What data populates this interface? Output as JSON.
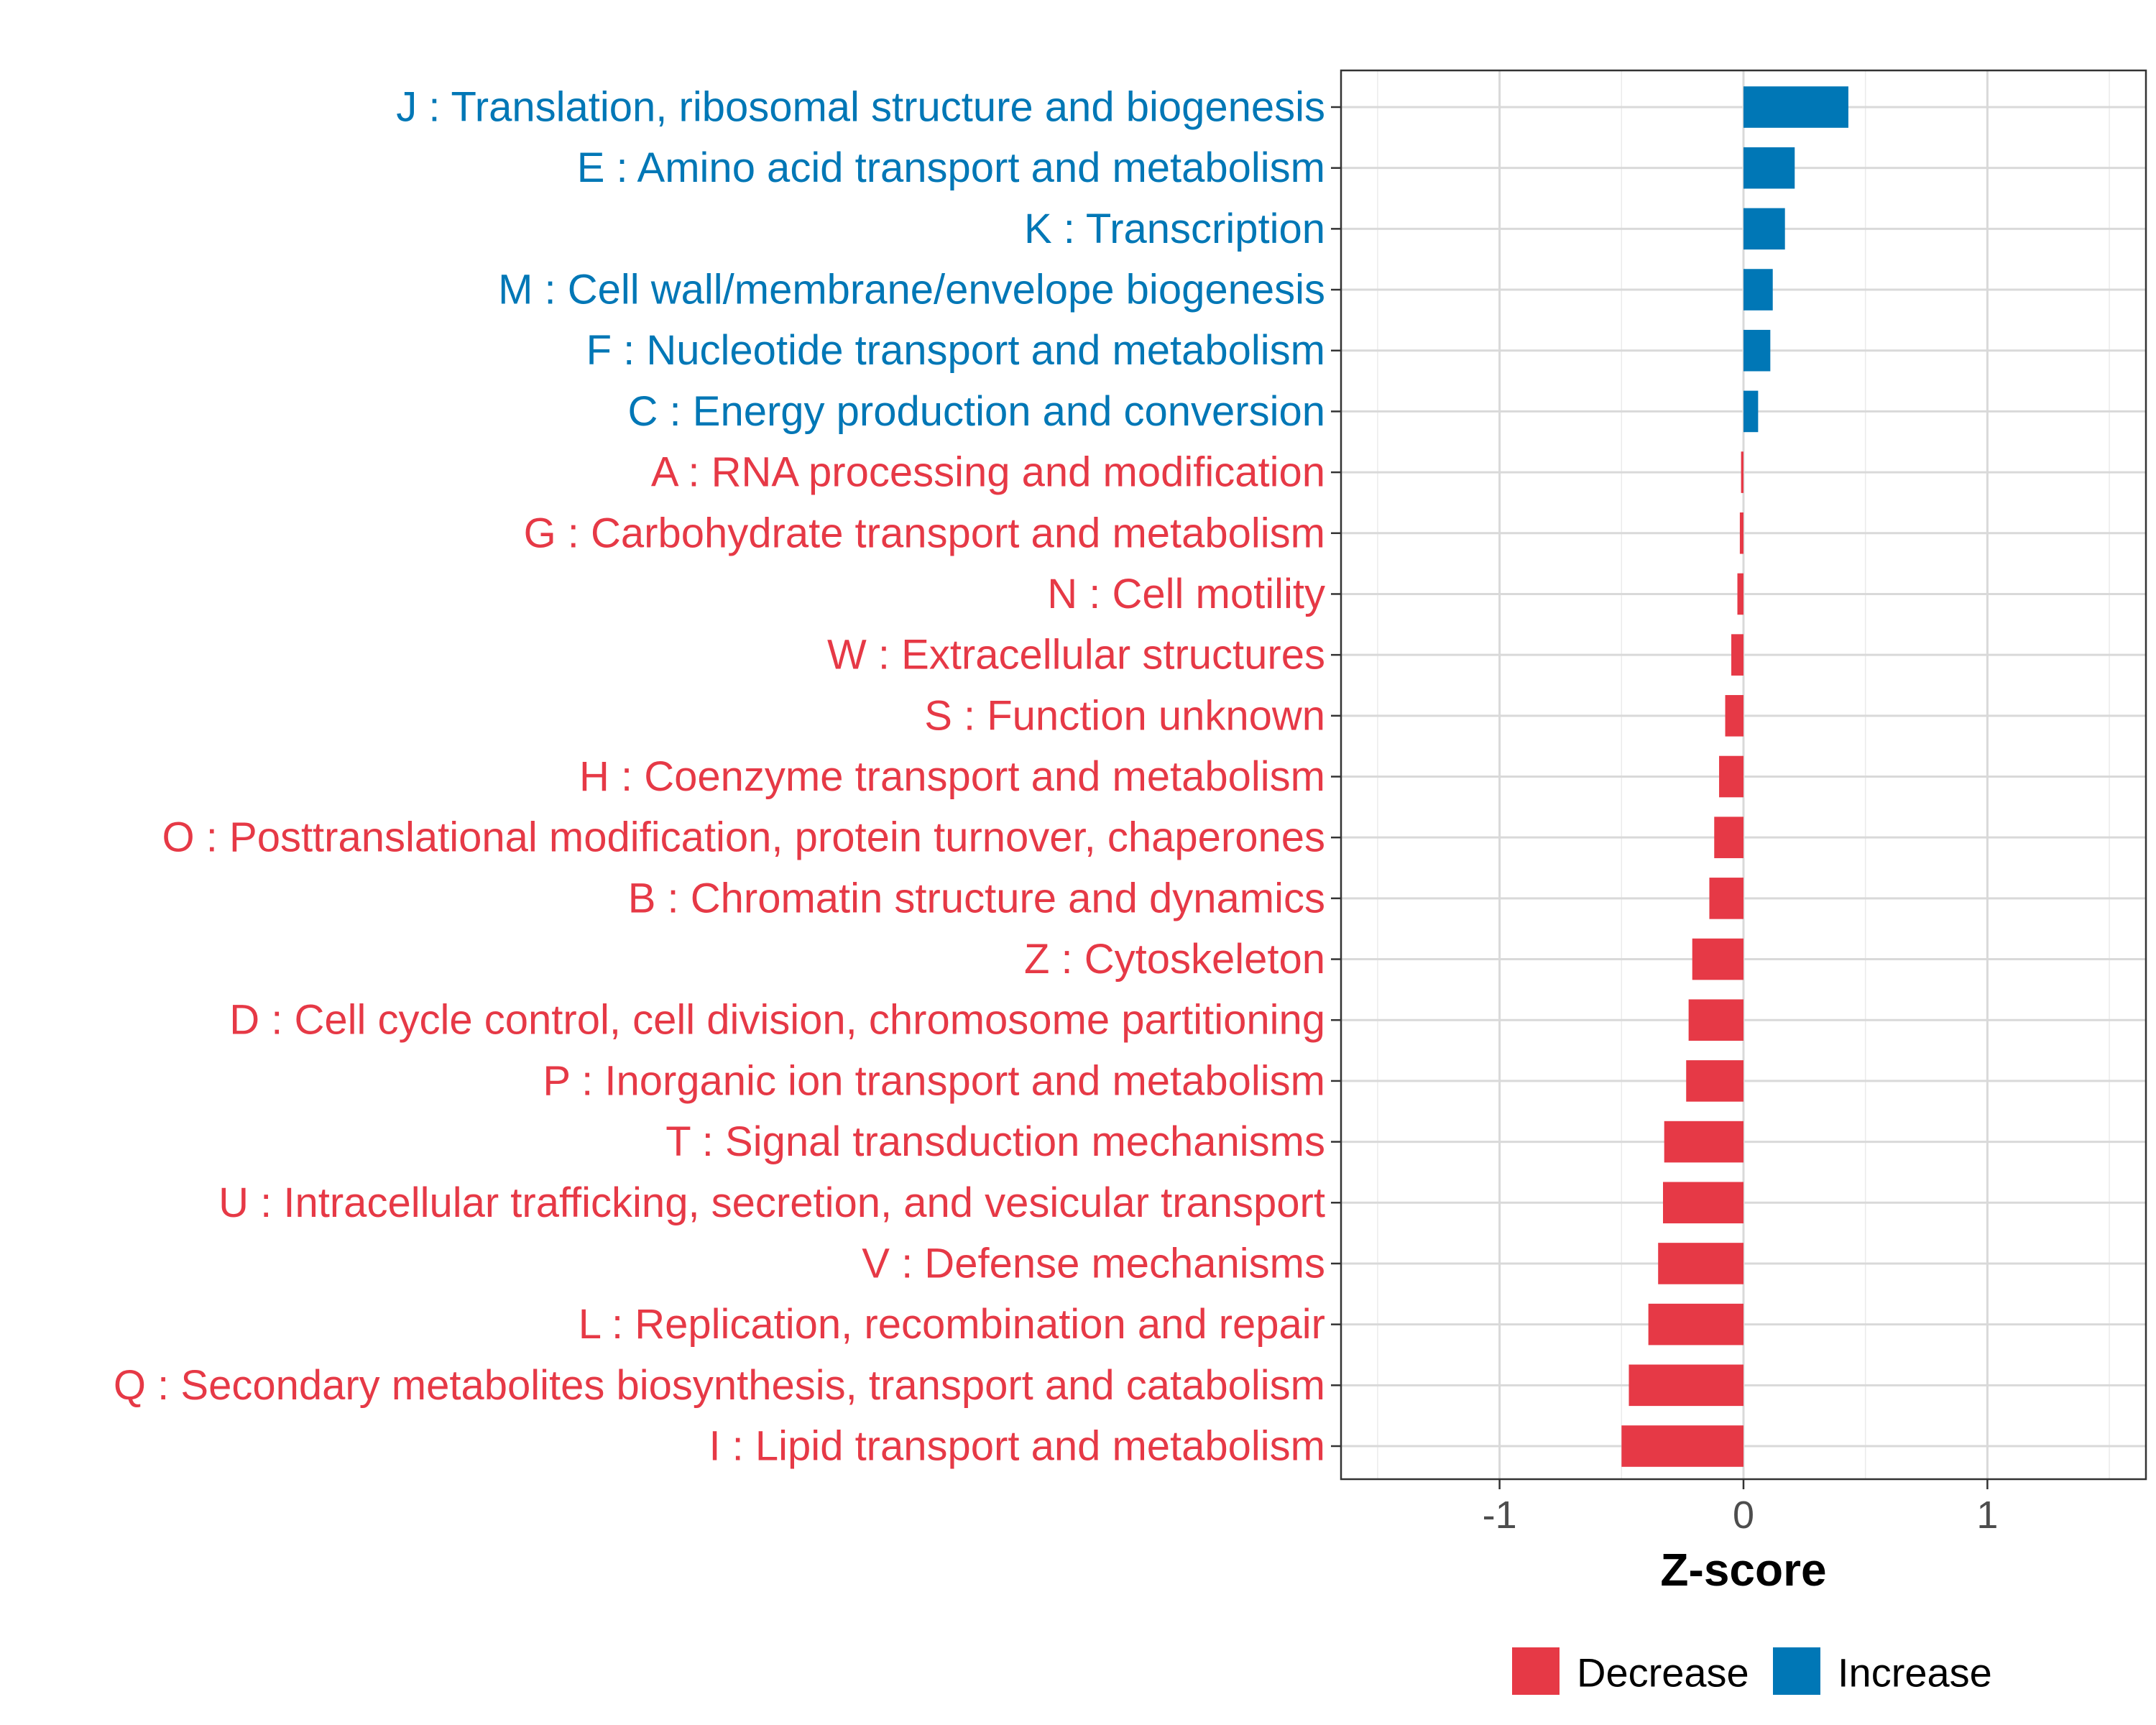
{
  "chart_data": {
    "type": "bar",
    "orientation": "horizontal",
    "xlabel": "Z-score",
    "ylabel": "",
    "xlim": [
      -1.65,
      1.65
    ],
    "xticks": [
      -1,
      0,
      1
    ],
    "xtick_labels": [
      "-1",
      "0",
      "1"
    ],
    "grid": true,
    "colors": {
      "Decrease": "#e63946",
      "Increase": "#0077b6"
    },
    "legend": {
      "position": "bottom",
      "entries": [
        {
          "label": "Decrease",
          "color": "#e63946"
        },
        {
          "label": "Increase",
          "color": "#0077b6"
        }
      ]
    },
    "bars": [
      {
        "label": "J : Translation, ribosomal structure and biogenesis",
        "value": 0.43,
        "direction": "Increase"
      },
      {
        "label": "E : Amino acid transport and metabolism",
        "value": 0.21,
        "direction": "Increase"
      },
      {
        "label": "K : Transcription",
        "value": 0.17,
        "direction": "Increase"
      },
      {
        "label": "M : Cell wall/membrane/envelope biogenesis",
        "value": 0.12,
        "direction": "Increase"
      },
      {
        "label": "F : Nucleotide transport and metabolism",
        "value": 0.11,
        "direction": "Increase"
      },
      {
        "label": "C : Energy production and conversion",
        "value": 0.06,
        "direction": "Increase"
      },
      {
        "label": "A : RNA processing and modification",
        "value": -0.01,
        "direction": "Decrease"
      },
      {
        "label": "G : Carbohydrate transport and metabolism",
        "value": -0.015,
        "direction": "Decrease"
      },
      {
        "label": "N : Cell motility",
        "value": -0.025,
        "direction": "Decrease"
      },
      {
        "label": "W : Extracellular structures",
        "value": -0.05,
        "direction": "Decrease"
      },
      {
        "label": "S : Function unknown",
        "value": -0.075,
        "direction": "Decrease"
      },
      {
        "label": "H : Coenzyme transport and metabolism",
        "value": -0.1,
        "direction": "Decrease"
      },
      {
        "label": "O : Posttranslational modification, protein turnover, chaperones",
        "value": -0.12,
        "direction": "Decrease"
      },
      {
        "label": "B : Chromatin structure and dynamics",
        "value": -0.14,
        "direction": "Decrease"
      },
      {
        "label": "Z : Cytoskeleton",
        "value": -0.21,
        "direction": "Decrease"
      },
      {
        "label": "D : Cell cycle control, cell division, chromosome partitioning",
        "value": -0.225,
        "direction": "Decrease"
      },
      {
        "label": "P : Inorganic ion transport and metabolism",
        "value": -0.235,
        "direction": "Decrease"
      },
      {
        "label": "T : Signal transduction mechanisms",
        "value": -0.325,
        "direction": "Decrease"
      },
      {
        "label": "U : Intracellular trafficking, secretion, and vesicular transport",
        "value": -0.33,
        "direction": "Decrease"
      },
      {
        "label": "V : Defense mechanisms",
        "value": -0.35,
        "direction": "Decrease"
      },
      {
        "label": "L : Replication, recombination and repair",
        "value": -0.39,
        "direction": "Decrease"
      },
      {
        "label": "Q : Secondary metabolites biosynthesis, transport and catabolism",
        "value": -0.47,
        "direction": "Decrease"
      },
      {
        "label": "I : Lipid transport and metabolism",
        "value": -0.5,
        "direction": "Decrease"
      }
    ]
  }
}
